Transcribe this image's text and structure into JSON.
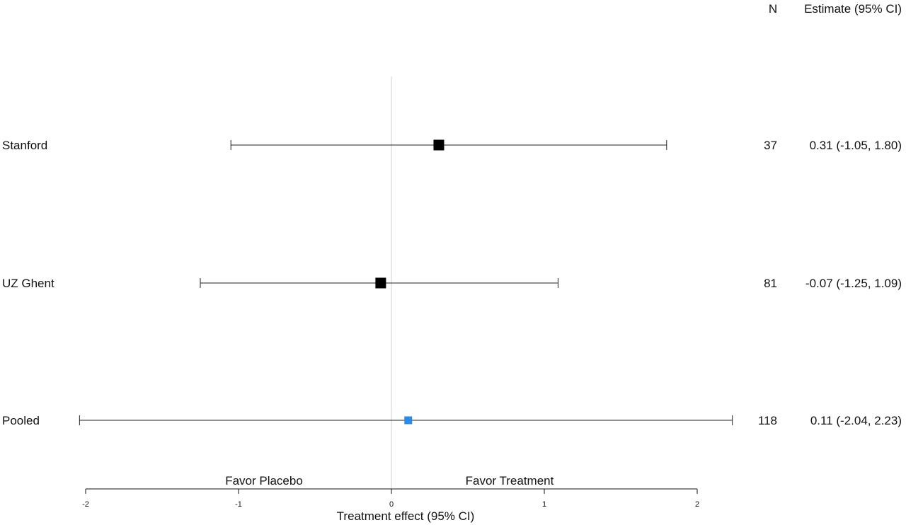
{
  "chart_data": {
    "type": "forest",
    "headers": {
      "n": "N",
      "estimate": "Estimate (95% CI)"
    },
    "studies": [
      {
        "label": "Stanford",
        "estimate": 0.31,
        "lower": -1.05,
        "upper": 1.8,
        "n": "37",
        "ci_text": "0.31 (-1.05, 1.80)",
        "color": "#000000",
        "pooled": false
      },
      {
        "label": "UZ Ghent",
        "estimate": -0.07,
        "lower": -1.25,
        "upper": 1.09,
        "n": "81",
        "ci_text": "-0.07 (-1.25, 1.09)",
        "color": "#000000",
        "pooled": false
      },
      {
        "label": "Pooled",
        "estimate": 0.11,
        "lower": -2.04,
        "upper": 2.23,
        "n": "118",
        "ci_text": "0.11 (-2.04, 2.23)",
        "color": "#2b8ae6",
        "pooled": true
      }
    ],
    "xlim": [
      -2,
      2
    ],
    "ticks": [
      -2,
      -1,
      0,
      1,
      2
    ],
    "tick_labels": [
      "-2",
      "-1",
      "0",
      "1",
      "2"
    ],
    "reference_line": 0,
    "xlabel": "Treatment effect (95% CI)",
    "favor_left": "Favor Placebo",
    "favor_right": "Favor Treatment"
  }
}
